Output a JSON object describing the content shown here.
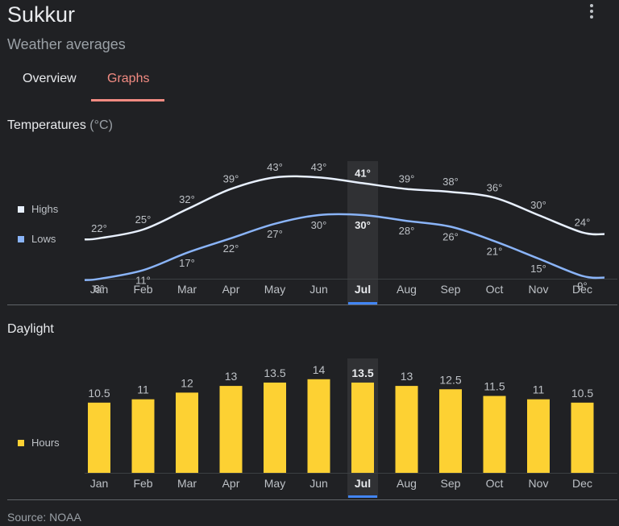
{
  "header": {
    "title": "Sukkur",
    "subtitle": "Weather averages",
    "menu_icon": "more-vert-icon"
  },
  "tabs": [
    {
      "label": "Overview",
      "active": false
    },
    {
      "label": "Graphs",
      "active": true
    }
  ],
  "colors": {
    "highs": "#e8f0fe",
    "lows": "#8ab4f8",
    "daylight": "#fdd133",
    "accent_tab": "#f28b82",
    "selected": "#4285f4"
  },
  "temperatures": {
    "title": "Temperatures",
    "unit": "(°C)",
    "legend": [
      {
        "label": "Highs"
      },
      {
        "label": "Lows"
      }
    ]
  },
  "daylight": {
    "title": "Daylight",
    "legend": [
      {
        "label": "Hours"
      }
    ]
  },
  "source": "Source: NOAA",
  "chart_data": [
    {
      "type": "line",
      "categories": [
        "Jan",
        "Feb",
        "Mar",
        "Apr",
        "May",
        "Jun",
        "Jul",
        "Aug",
        "Sep",
        "Oct",
        "Nov",
        "Dec"
      ],
      "selected_index": 6,
      "series": [
        {
          "name": "Highs",
          "values": [
            22,
            25,
            32,
            39,
            43,
            43,
            41,
            39,
            38,
            36,
            30,
            24
          ],
          "labels": [
            "22°",
            "25°",
            "32°",
            "39°",
            "43°",
            "43°",
            "41°",
            "39°",
            "38°",
            "36°",
            "30°",
            "24°"
          ]
        },
        {
          "name": "Lows",
          "values": [
            8,
            11,
            17,
            22,
            27,
            30,
            30,
            28,
            26,
            21,
            15,
            9
          ],
          "labels": [
            "8°",
            "11°",
            "17°",
            "22°",
            "27°",
            "30°",
            "30°",
            "28°",
            "26°",
            "21°",
            "15°",
            "9°"
          ]
        }
      ]
    },
    {
      "type": "bar",
      "categories": [
        "Jan",
        "Feb",
        "Mar",
        "Apr",
        "May",
        "Jun",
        "Jul",
        "Aug",
        "Sep",
        "Oct",
        "Nov",
        "Dec"
      ],
      "selected_index": 6,
      "series": [
        {
          "name": "Hours",
          "values": [
            10.5,
            11,
            12,
            13,
            13.5,
            14,
            13.5,
            13,
            12.5,
            11.5,
            11,
            10.5
          ],
          "labels": [
            "10.5",
            "11",
            "12",
            "13",
            "13.5",
            "14",
            "13.5",
            "13",
            "12.5",
            "11.5",
            "11",
            "10.5"
          ]
        }
      ]
    }
  ]
}
